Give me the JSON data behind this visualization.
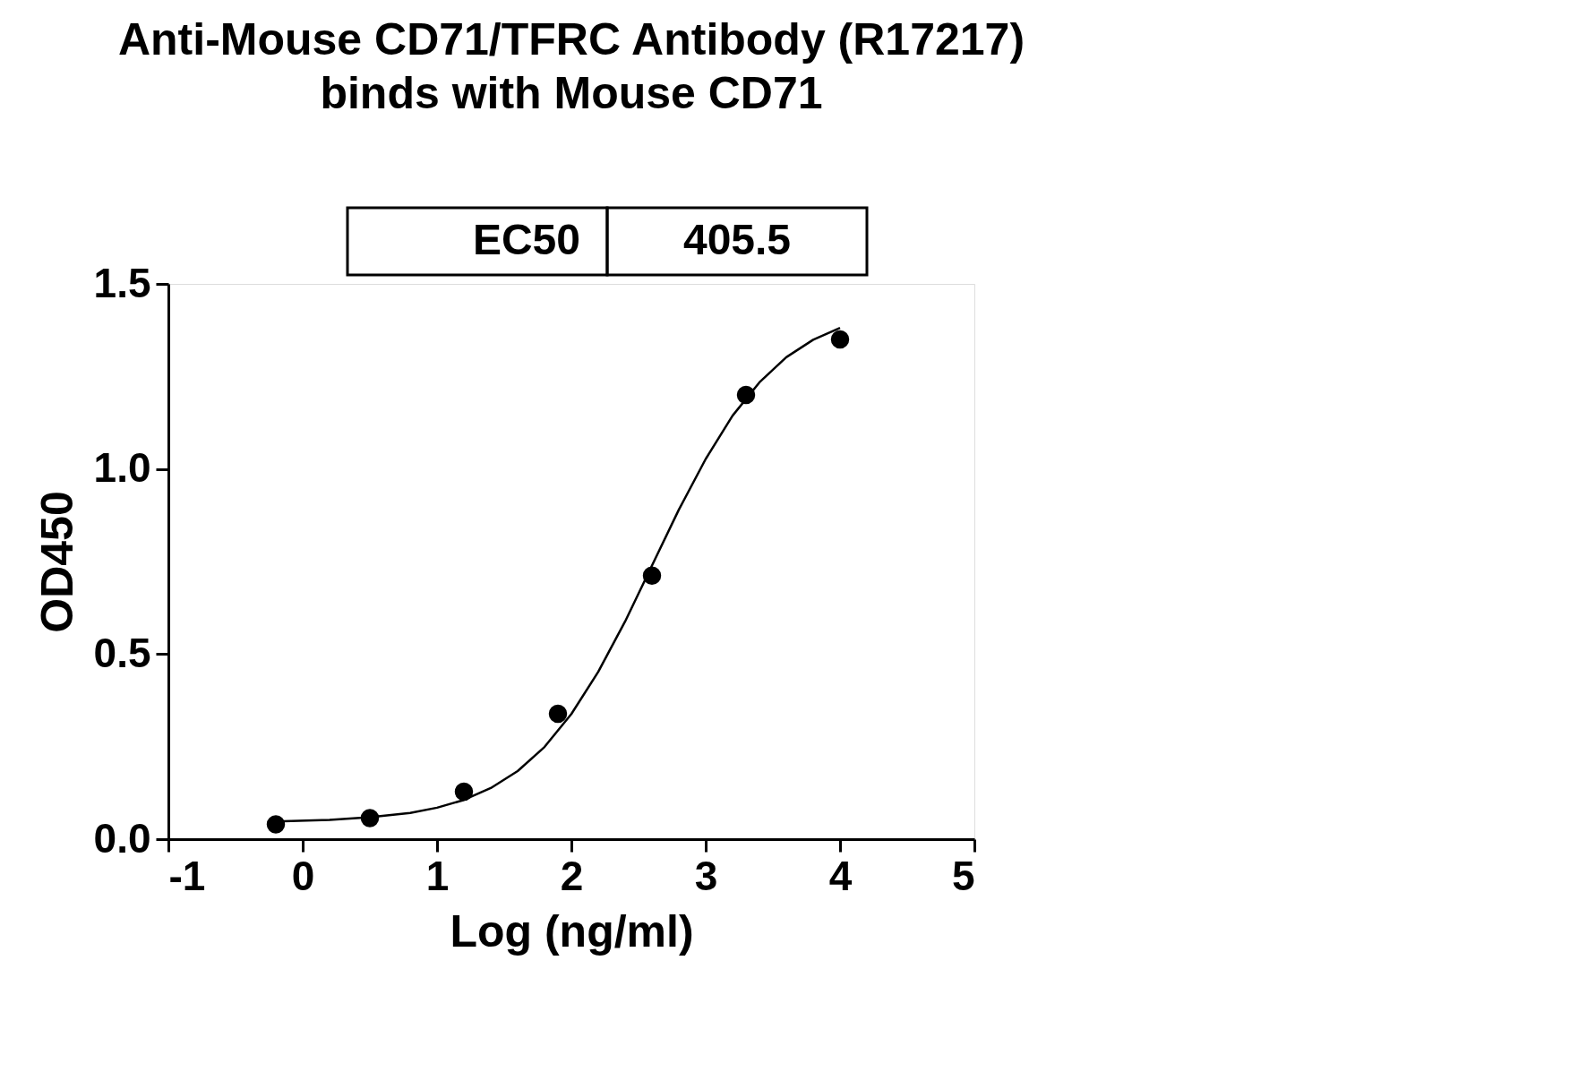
{
  "chart_data": {
    "type": "scatter",
    "title": [
      "Anti-Mouse CD71/TFRC Antibody (R17217)",
      "binds with Mouse CD71"
    ],
    "xlabel": "Log (ng/ml)",
    "ylabel": "OD450",
    "annotations": [
      "EC50",
      "405.5"
    ],
    "x": [
      -0.2,
      0.5,
      1.2,
      1.9,
      2.6,
      3.3,
      4.0
    ],
    "series": [
      {
        "color": "#000000",
        "marker": "circle",
        "values": [
          0.04,
          0.057,
          0.128,
          0.339,
          0.712,
          1.2,
          1.35
        ]
      },
      {
        "type": "line",
        "color": "#000000",
        "marker": "none",
        "x": [
          -0.2,
          0.2,
          0.5,
          0.8,
          1.0,
          1.2,
          1.4,
          1.6,
          1.8,
          2.0,
          2.2,
          2.4,
          2.6,
          2.8,
          3.0,
          3.2,
          3.4,
          3.6,
          3.8,
          4.0
        ],
        "values": [
          0.048,
          0.052,
          0.059,
          0.071,
          0.085,
          0.106,
          0.138,
          0.184,
          0.249,
          0.338,
          0.452,
          0.588,
          0.739,
          0.89,
          1.027,
          1.144,
          1.234,
          1.302,
          1.349,
          1.381
        ]
      }
    ],
    "xlim": [
      -1,
      5
    ],
    "xticks": [
      {
        "value": -1,
        "label": "-1"
      },
      {
        "value": 0,
        "label": "0"
      },
      {
        "value": 1,
        "label": "1"
      },
      {
        "value": 2,
        "label": "2"
      },
      {
        "value": 3,
        "label": "3"
      },
      {
        "value": 4,
        "label": "4"
      },
      {
        "value": 5,
        "label": "5"
      }
    ],
    "ylim": [
      0,
      1.5
    ],
    "yticks": [
      {
        "value": 0,
        "label": "0.0"
      },
      0.5,
      {
        "value": 1,
        "label": "1.0"
      },
      1.5
    ],
    "line_style": "solid",
    "grid": false
  }
}
